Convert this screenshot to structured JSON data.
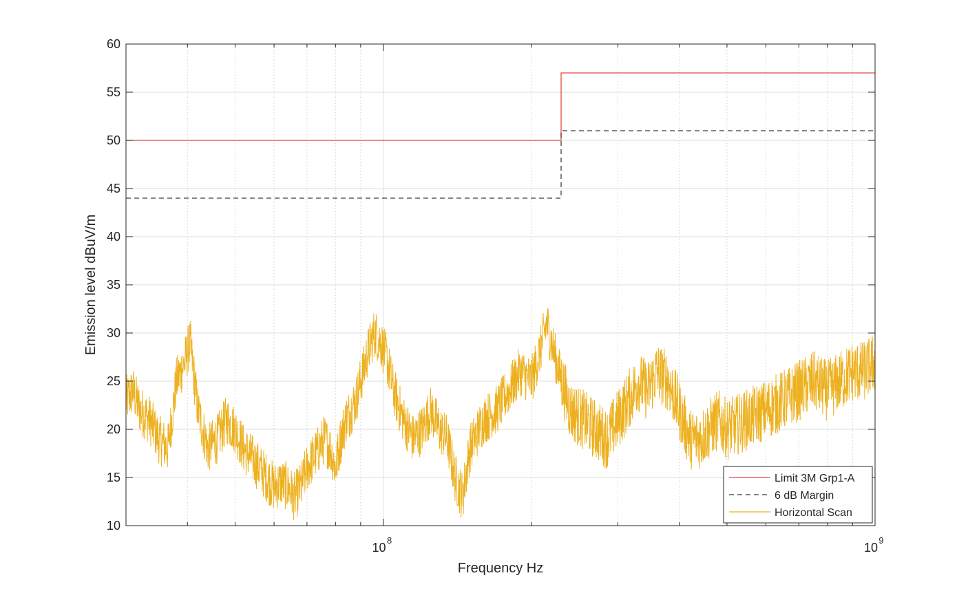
{
  "chart_data": {
    "type": "line",
    "title": "",
    "xlabel": "Frequency Hz",
    "ylabel": "Emission level dBuV/m",
    "x_scale": "log",
    "xlim": [
      30000000,
      1000000000
    ],
    "ylim": [
      10,
      60
    ],
    "grid": true,
    "x_major_ticks": [
      {
        "value": 100000000,
        "base": "10",
        "exp": "8"
      },
      {
        "value": 1000000000,
        "base": "10",
        "exp": "9"
      }
    ],
    "y_ticks": [
      10,
      15,
      20,
      25,
      30,
      35,
      40,
      45,
      50,
      55,
      60
    ],
    "legend_position": "bottom-right",
    "series": [
      {
        "name": "Limit 3M Grp1-A",
        "color": "#e8463a",
        "style": "solid",
        "x": [
          30000000,
          230000000,
          230000000,
          1000000000
        ],
        "y": [
          50,
          50,
          57,
          57
        ]
      },
      {
        "name": "6 dB Margin",
        "color": "#3c3c3c",
        "style": "dashed",
        "x": [
          30000000,
          230000000,
          230000000,
          1000000000
        ],
        "y": [
          44,
          44,
          51,
          51
        ]
      },
      {
        "name": "Horizontal Scan",
        "color": "#EDB120",
        "style": "solid",
        "noisy": true,
        "x": [
          30000000,
          31000000,
          32000000,
          33500000,
          35000000,
          36500000,
          38000000,
          39500000,
          40500000,
          42000000,
          44000000,
          46000000,
          48000000,
          50000000,
          52000000,
          54000000,
          56000000,
          58000000,
          60000000,
          62000000,
          64000000,
          66000000,
          68000000,
          70000000,
          72000000,
          74000000,
          76000000,
          78000000,
          80000000,
          82000000,
          84000000,
          86000000,
          88000000,
          90000000,
          93000000,
          96000000,
          99000000,
          102000000,
          105000000,
          110000000,
          115000000,
          120000000,
          125000000,
          130000000,
          135000000,
          140000000,
          145000000,
          150000000,
          160000000,
          170000000,
          180000000,
          190000000,
          200000000,
          208000000,
          215000000,
          225000000,
          240000000,
          255000000,
          270000000,
          285000000,
          300000000,
          315000000,
          330000000,
          345000000,
          360000000,
          380000000,
          400000000,
          420000000,
          440000000,
          460000000,
          480000000,
          500000000,
          550000000,
          600000000,
          650000000,
          700000000,
          750000000,
          800000000,
          850000000,
          900000000,
          950000000,
          1000000000
        ],
        "y": [
          23,
          24,
          22,
          21,
          19,
          18,
          25,
          27,
          29,
          22,
          18,
          19,
          21,
          20,
          18,
          17,
          16,
          15,
          14,
          14.5,
          14,
          13,
          14,
          16,
          17,
          18,
          19,
          18,
          16,
          19,
          21,
          22,
          23,
          25,
          28,
          30,
          29,
          27,
          24,
          21,
          19,
          20,
          22,
          20,
          19,
          15,
          13,
          18,
          21,
          22,
          24,
          26,
          25,
          28,
          31,
          27,
          22,
          21,
          20,
          19,
          21,
          23,
          25,
          24,
          26,
          25,
          22,
          19,
          19,
          20,
          21,
          20,
          21,
          22,
          23,
          24,
          25,
          24,
          25,
          26,
          26,
          27
        ]
      }
    ]
  }
}
